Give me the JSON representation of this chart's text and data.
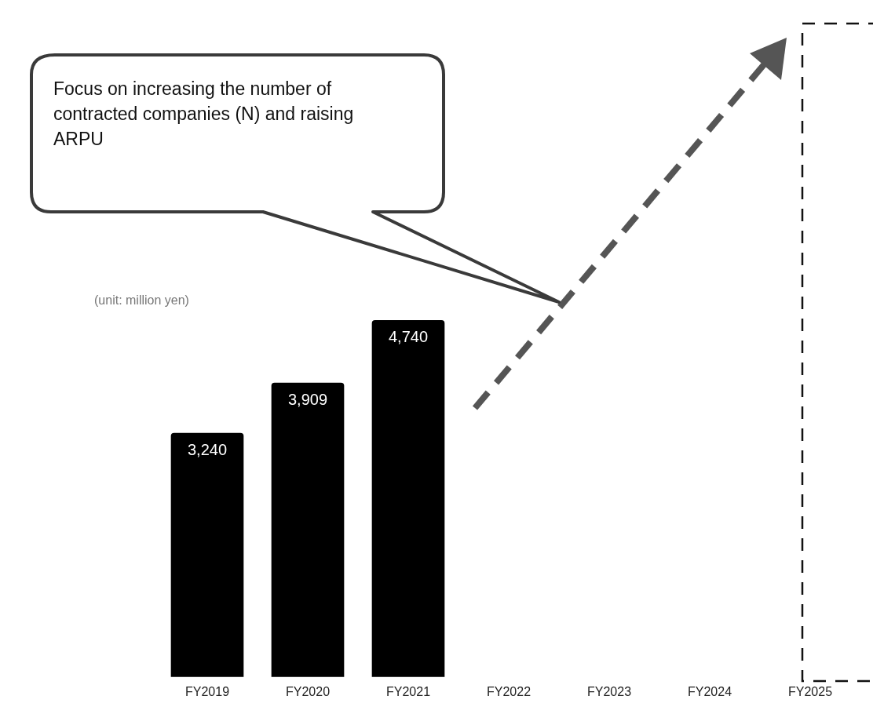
{
  "chart_data": {
    "type": "bar",
    "categories": [
      "FY2019",
      "FY2020",
      "FY2021",
      "FY2022",
      "FY2023",
      "FY2024",
      "FY2025"
    ],
    "values": [
      3240,
      3909,
      4740,
      null,
      null,
      null,
      null
    ],
    "value_labels": [
      "3,240",
      "3,909",
      "4,740",
      null,
      null,
      null,
      null
    ],
    "color": "#000000",
    "annotations": [
      "Focus on increasing the number of contracted companies (N) and raising ARPU",
      "(unit: million yen)"
    ],
    "grid": false,
    "legend": false
  }
}
